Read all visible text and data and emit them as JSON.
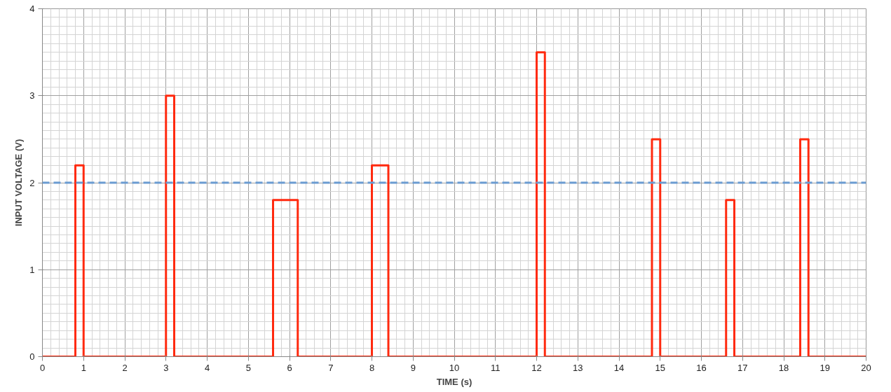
{
  "chart_data": {
    "type": "line",
    "xlabel": "TIME (s)",
    "ylabel": "INPUT VOLTAGE (V)",
    "series": [
      {
        "color": "#ff2a0f",
        "x": [
          0,
          0.8,
          0.8,
          1.0,
          1.0,
          3.0,
          3.0,
          3.2,
          3.2,
          5.6,
          5.6,
          6.2,
          6.2,
          8.0,
          8.0,
          8.4,
          8.4,
          12.0,
          12.0,
          12.2,
          12.2,
          14.8,
          14.8,
          15.0,
          15.0,
          16.6,
          16.6,
          16.8,
          16.8,
          18.4,
          18.4,
          18.6,
          18.6,
          20
        ],
        "values": [
          0,
          0,
          2.2,
          2.2,
          0,
          0,
          3,
          3,
          0,
          0,
          1.8,
          1.8,
          0,
          0,
          2.2,
          2.2,
          0,
          0,
          3.5,
          3.5,
          0,
          0,
          2.5,
          2.5,
          0,
          0,
          1.8,
          1.8,
          0,
          0,
          2.5,
          2.5,
          0,
          0
        ]
      }
    ],
    "xlim": [
      0,
      20
    ],
    "xticks": [
      0,
      1,
      2,
      3,
      4,
      5,
      6,
      7,
      8,
      9,
      10,
      11,
      12,
      13,
      14,
      15,
      16,
      17,
      18,
      19,
      20
    ],
    "ylim": [
      0,
      4
    ],
    "yticks": [
      0,
      1,
      2,
      3,
      4
    ],
    "grid": true,
    "line_style": "solid",
    "ref_lines": [
      {
        "axis": "y",
        "value": 2,
        "color": "#6a9bd1",
        "line_style": "dashed"
      }
    ]
  }
}
